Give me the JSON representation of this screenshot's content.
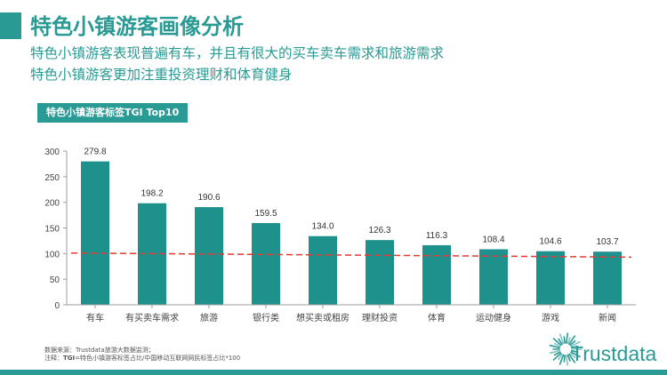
{
  "page": {
    "title": "特色小镇游客画像分析",
    "subtitle_1": "特色小镇游客表现普遍有车，并且有很大的买车卖车需求和旅游需求",
    "subtitle_2": "特色小镇游客更加注重投资理财和体育健身"
  },
  "chart_tag": "特色小镇游客标签TGI  Top10",
  "chart_data": {
    "type": "bar",
    "title": "",
    "categories": [
      "有车",
      "有买卖车需求",
      "旅游",
      "银行类",
      "想买卖或租房",
      "理财投资",
      "体育",
      "运动健身",
      "游戏",
      "新闻"
    ],
    "values": [
      279.8,
      198.2,
      190.6,
      159.5,
      134.0,
      126.3,
      116.3,
      108.4,
      104.6,
      103.7
    ],
    "value_labels": [
      "279.8",
      "198.2",
      "190.6",
      "159.5",
      "134.0",
      "126.3",
      "116.3",
      "108.4",
      "104.6",
      "103.7"
    ],
    "yticks": [
      "0",
      "50",
      "100",
      "150",
      "200",
      "250",
      "300"
    ],
    "ylim": [
      0,
      300
    ],
    "reference_line": {
      "start": 101,
      "end": 93,
      "style": "dashed",
      "color": "#e53935"
    },
    "bar_color": "#1f918c",
    "grid": false
  },
  "footnote": {
    "line1": "数据来源：Trustdata旅游大数据监测；",
    "line2_prefix": "注释：",
    "line2_bold": "TGI",
    "line2_rest": "=特色小镇游客标签占比/中国移动互联网网民标签占比*100"
  },
  "logo": {
    "text": "Trustdata",
    "icon": "starburst-logo-icon"
  },
  "colors": {
    "accent": "#2a9a94",
    "bar": "#1f918c",
    "reference": "#e53935"
  }
}
